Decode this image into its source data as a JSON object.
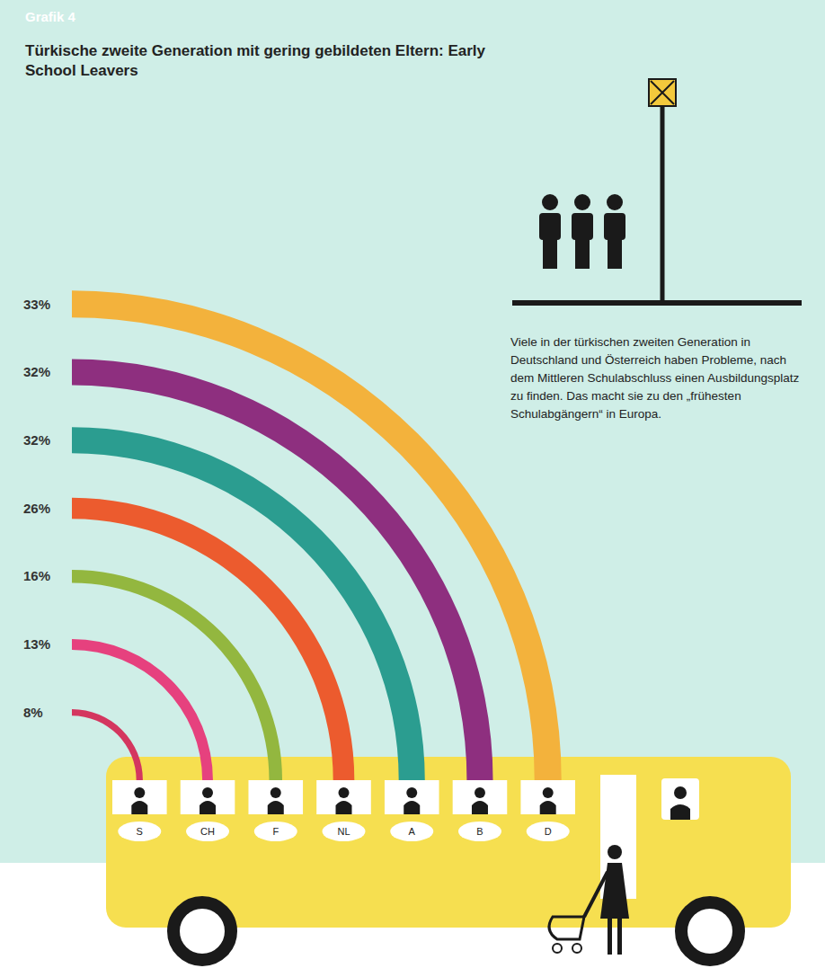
{
  "chart_data": {
    "type": "arc",
    "subtitle": "Grafik 4",
    "title": "Türkische zweite Generation mit gering gebildeten Eltern: Early School Leavers",
    "annotations": [
      "Viele in der türkischen zweiten Generation in Deutschland und Österreich haben Probleme, nach dem Mittleren Schulabschluss einen Ausbildungsplatz zu finden. Das macht sie zu den „frühesten Schulabgängern“ in Europa."
    ],
    "categories": [
      "S",
      "CH",
      "F",
      "NL",
      "A",
      "B",
      "D"
    ],
    "values": [
      8,
      13,
      16,
      26,
      32,
      32,
      33
    ],
    "value_labels": [
      "8%",
      "13%",
      "16%",
      "26%",
      "32%",
      "32%",
      "33%"
    ],
    "colors": [
      "#d4365f",
      "#e6417e",
      "#93b73f",
      "#ec5b2e",
      "#2b9d90",
      "#8e2f7f",
      "#f3b23c"
    ],
    "data_labels": true
  }
}
